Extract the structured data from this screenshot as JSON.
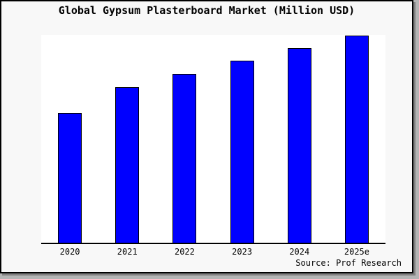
{
  "window": {
    "background": "#f8f8f8",
    "frame_border_color": "#000000",
    "shadow_color": "#808080",
    "outer_background": "#b4b4b4"
  },
  "header": {
    "title": "Global Gypsum Plasterboard Market (Million USD)"
  },
  "footer": {
    "source": "Source: Prof Research"
  },
  "chart_data": {
    "type": "bar",
    "title": "Global Gypsum Plasterboard Market (Million USD)",
    "categories": [
      "2020",
      "2021",
      "2022",
      "2023",
      "2024",
      "2025e"
    ],
    "values_relative_pct": [
      62.4,
      74.8,
      81.2,
      87.6,
      93.6,
      99.7
    ],
    "note": "No y-axis scale or gridlines are shown; values are bar heights measured as percent of plot-area height (2025e tallest).",
    "xlabel": "",
    "ylabel": "",
    "grid": false,
    "legend": "none",
    "y_axis_visible": false,
    "plot_background": "#ffffff",
    "bar_color": "#0000ff",
    "bar_border_color": "#000000",
    "axis_color": "#000000"
  }
}
